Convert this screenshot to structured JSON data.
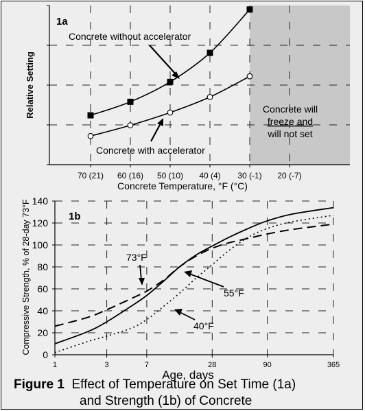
{
  "caption": {
    "figure_label": "Figure 1",
    "line1": "Effect of Temperature on Set Time (1a)",
    "line2": "and Strength (1b) of Concrete"
  },
  "chart_data": [
    {
      "type": "line",
      "panel_label": "1a",
      "categories": [
        "70 (21)",
        "60 (16)",
        "50 (10)",
        "40 (4)",
        "30 (-1)",
        "20 (-7)"
      ],
      "xlabel": "Concrete Temperature, °F (°C)",
      "ylabel": "Relative Setting",
      "ylim": [
        0,
        4
      ],
      "grid": true,
      "series": [
        {
          "name": "Concrete without accelerator",
          "marker": "filled-square",
          "color": "#000000",
          "values": [
            1.24,
            1.58,
            2.08,
            2.81,
            3.9,
            null
          ]
        },
        {
          "name": "Concrete with accelerator",
          "marker": "open-circle",
          "color": "#000000",
          "values": [
            0.72,
            0.99,
            1.31,
            1.7,
            2.22,
            null
          ]
        }
      ],
      "annotations": {
        "without_accelerator": "Concrete without accelerator",
        "with_accelerator": "Concrete with accelerator",
        "shaded_region_text": [
          "Concrete will",
          "freeze and",
          "will not set"
        ]
      },
      "shaded_region": {
        "from_category": "30 (-1)",
        "to_category": "20 (-7)",
        "color": "#c8c8c8"
      }
    },
    {
      "type": "line",
      "panel_label": "1b",
      "xlabel": "Age, days",
      "ylabel": "Compressive Strength, % of 28-day 73°F",
      "x_scale": "log",
      "x_ticks": [
        1,
        3,
        7,
        28,
        90,
        365
      ],
      "xlim": [
        1,
        365
      ],
      "y_ticks": [
        0,
        20,
        40,
        60,
        80,
        100,
        120,
        140
      ],
      "ylim": [
        0,
        140
      ],
      "grid": true,
      "series": [
        {
          "name": "73°F",
          "style": "dashed",
          "color": "#000000",
          "x": [
            1,
            2,
            3,
            5,
            7,
            10,
            14,
            20,
            28,
            40,
            60,
            90,
            150,
            365
          ],
          "values": [
            26,
            34,
            41,
            51,
            58,
            68,
            80,
            90,
            97,
            102,
            106,
            110,
            114,
            119
          ]
        },
        {
          "name": "55°F",
          "style": "solid",
          "color": "#000000",
          "x": [
            1,
            2,
            3,
            5,
            7,
            10,
            14,
            20,
            28,
            40,
            60,
            90,
            150,
            365
          ],
          "values": [
            10,
            21,
            30,
            44,
            54,
            67,
            80,
            91,
            99,
            107,
            115,
            122,
            128,
            134
          ]
        },
        {
          "name": "40°F",
          "style": "dotted",
          "color": "#000000",
          "x": [
            1,
            2,
            3,
            5,
            7,
            10,
            14,
            20,
            28,
            40,
            60,
            90,
            150,
            365
          ],
          "values": [
            2,
            12,
            17,
            24,
            32,
            44,
            56,
            70,
            82,
            95,
            107,
            115,
            121,
            127
          ]
        }
      ]
    }
  ]
}
